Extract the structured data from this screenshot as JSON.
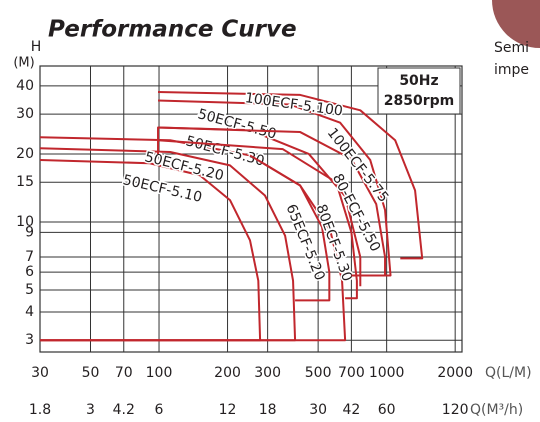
{
  "chart_data": {
    "type": "line",
    "title": "Performance Curve",
    "y_axis_label": "H",
    "y_axis_unit": "(M)",
    "x_axis_label": "Q(L/M)",
    "x2_axis_label": "Q(M³/h)",
    "box_lines": [
      "50Hz",
      "2850rpm"
    ],
    "side_text": [
      "Semi",
      "impe"
    ],
    "log_x": true,
    "log_y": true,
    "grid": true,
    "xlim": [
      30,
      2143
    ],
    "xticks": [
      30,
      50,
      70,
      100,
      200,
      300,
      500,
      700,
      1000,
      2000
    ],
    "x2lim": [
      1.8,
      128.6
    ],
    "x2ticks": [
      1.8,
      3,
      4.2,
      6,
      12,
      18,
      30,
      42,
      60,
      120
    ],
    "ylim": [
      2.66,
      49
    ],
    "yticks": [
      3,
      4,
      5,
      6,
      7,
      9,
      10,
      15,
      20,
      30,
      40
    ],
    "series": [
      {
        "name": "50ECF-5.10",
        "color": "#c1272d",
        "x": [
          30,
          91,
          151,
          205,
          251,
          273,
          278,
          30
        ],
        "values": [
          18.8,
          18.2,
          16.1,
          12.5,
          8.3,
          5.5,
          3,
          3
        ]
      },
      {
        "name": "50ECF-5.20",
        "color": "#c1272d",
        "x": [
          30,
          112,
          205,
          292,
          358,
          388,
          396,
          30
        ],
        "values": [
          21.2,
          20.4,
          17.8,
          13.1,
          8.7,
          5.5,
          3,
          3
        ]
      },
      {
        "name": "50ECF-5.30",
        "color": "#c1272d",
        "x": [
          30,
          112,
          251,
          417,
          565,
          637,
          657,
          30
        ],
        "values": [
          23.7,
          23,
          19.7,
          14.5,
          9.2,
          5.5,
          3,
          3
        ]
      },
      {
        "name": "50ECF-5.50",
        "color": "#c1272d",
        "x": [
          99,
          99,
          251,
          455,
          657,
          766,
          766
        ],
        "values": [
          20,
          26.2,
          25.5,
          20,
          13,
          7,
          5.2
        ]
      },
      {
        "name": "65ECF-5.20",
        "color": "#c1272d",
        "x": [
          251,
          417,
          520,
          560,
          560,
          396
        ],
        "values": [
          19.7,
          14.5,
          9.5,
          6,
          4.5,
          4.5
        ]
      },
      {
        "name": "80ECF-5.30",
        "color": "#c1272d",
        "x": [
          99,
          350,
          600,
          700,
          740,
          740,
          657
        ],
        "values": [
          23,
          21,
          15,
          9,
          5.5,
          4.6,
          4.6
        ]
      },
      {
        "name": "80-ECF-5.50",
        "color": "#c1272d",
        "x": [
          99,
          417,
          700,
          900,
          984,
          984,
          700
        ],
        "values": [
          26.2,
          25,
          19,
          12,
          7,
          5.8,
          5.8
        ]
      },
      {
        "name": "100ECF-5.75",
        "color": "#c1272d",
        "x": [
          99,
          377,
          625,
          847,
          984,
          1040,
          766
        ],
        "values": [
          34.5,
          33.1,
          27.5,
          18.8,
          11.3,
          5.8,
          5.8
        ]
      },
      {
        "name": "100ECF-5.100",
        "color": "#c1272d",
        "x": [
          99,
          417,
          766,
          1090,
          1333,
          1433,
          1148
        ],
        "values": [
          37.6,
          36.5,
          31.2,
          23,
          13.8,
          6.9,
          6.9
        ]
      }
    ]
  }
}
